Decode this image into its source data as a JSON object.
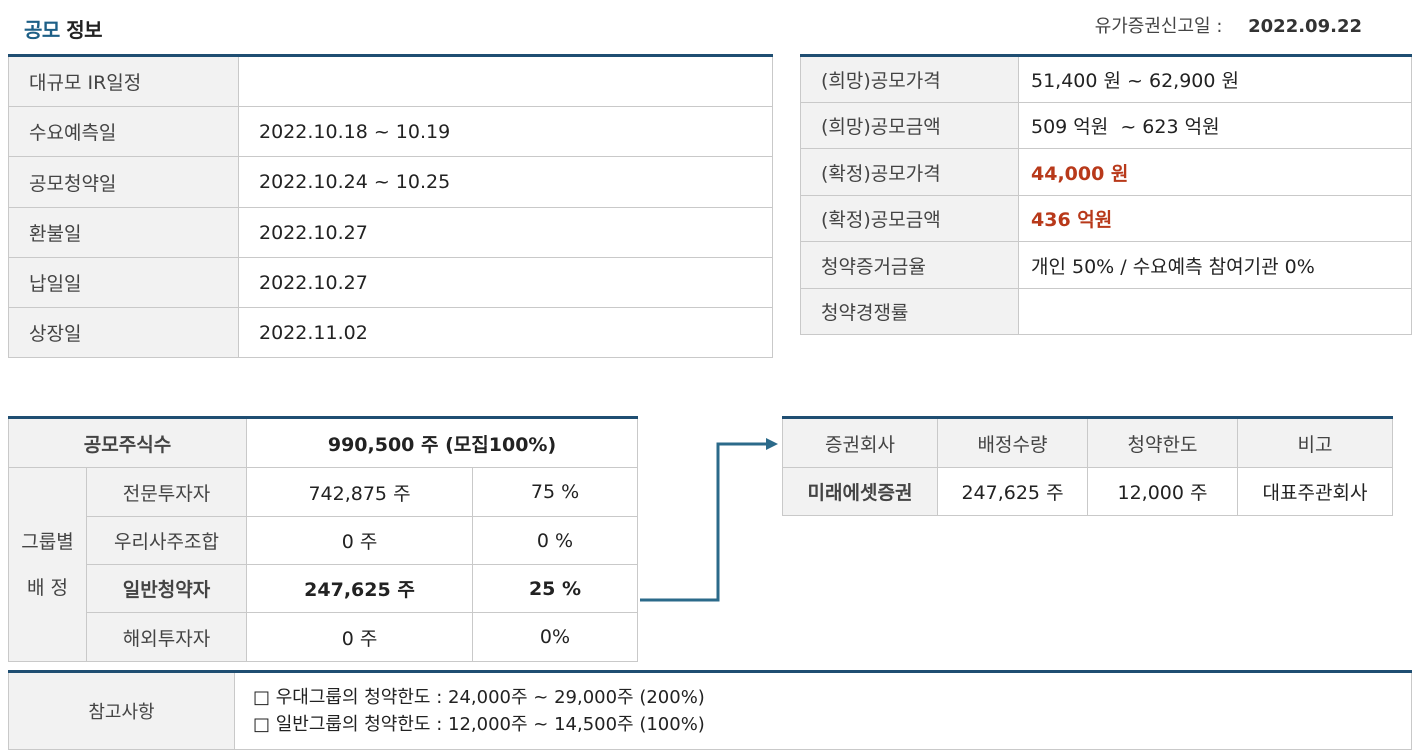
{
  "header": {
    "title_accent": "공모",
    "title_rest": "정보",
    "filing_label": "유가증권신고일 : ",
    "filing_date": "2022.09.22"
  },
  "schedule": [
    {
      "label": "대규모 IR일정",
      "value": ""
    },
    {
      "label": "수요예측일",
      "value": "2022.10.18 ~ 10.19"
    },
    {
      "label": "공모청약일",
      "value": "2022.10.24 ~ 10.25"
    },
    {
      "label": "환불일",
      "value": "2022.10.27"
    },
    {
      "label": "납일일",
      "value": "2022.10.27"
    },
    {
      "label": "상장일",
      "value": "2022.11.02"
    }
  ],
  "pricing": [
    {
      "label": "(희망)공모가격",
      "value": "51,400 원 ~ 62,900 원"
    },
    {
      "label": "(희망)공모금액",
      "value": "509 억원  ~ 623 억원"
    },
    {
      "label": "(확정)공모가격",
      "value": "44,000 원"
    },
    {
      "label": "(확정)공모금액",
      "value": "436 억원"
    },
    {
      "label": "청약증거금율",
      "value": "개인 50% / 수요예측 참여기관 0%"
    },
    {
      "label": "청약경쟁률",
      "value": ""
    }
  ],
  "allocation": {
    "total_label": "공모주식수",
    "total_value": "990,500 주 (모집100%)",
    "group_label_1": "그룹별",
    "group_label_2": "배 정",
    "rows": [
      {
        "name": "전문투자자",
        "shares": "742,875 주",
        "pct": "75 %"
      },
      {
        "name": "우리사주조합",
        "shares": "0 주",
        "pct": "0 %"
      },
      {
        "name": "일반청약자",
        "shares": "247,625 주",
        "pct": "25 %"
      },
      {
        "name": "해외투자자",
        "shares": "0 주",
        "pct": "0%"
      }
    ]
  },
  "brokers": {
    "headers": [
      "증권회사",
      "배정수량",
      "청약한도",
      "비고"
    ],
    "rows": [
      {
        "company": "미래에셋증권",
        "qty": "247,625 주",
        "limit": "12,000 주",
        "note": "대표주관회사"
      }
    ]
  },
  "notes": {
    "label": "참고사항",
    "lines": [
      "□ 우대그룹의 청약한도 : 24,000주 ~ 29,000주 (200%)",
      "□ 일반그룹의 청약한도 : 12,000주 ~ 14,500주 (100%)"
    ]
  },
  "colors": {
    "accent": "#1d5f86",
    "table_topline": "#1f4e72",
    "highlight_red": "#b8391a",
    "arrow": "#2b6a8a"
  }
}
